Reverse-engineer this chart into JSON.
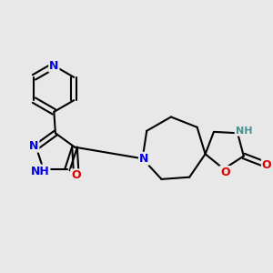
{
  "bg_color": "#e8e8e8",
  "bond_color": "#000000",
  "bond_width": 1.5,
  "atom_colors": {
    "N": "#0000ee",
    "O": "#dd0000",
    "H": "#4a9090",
    "C": "#000000"
  },
  "font_size": 9
}
